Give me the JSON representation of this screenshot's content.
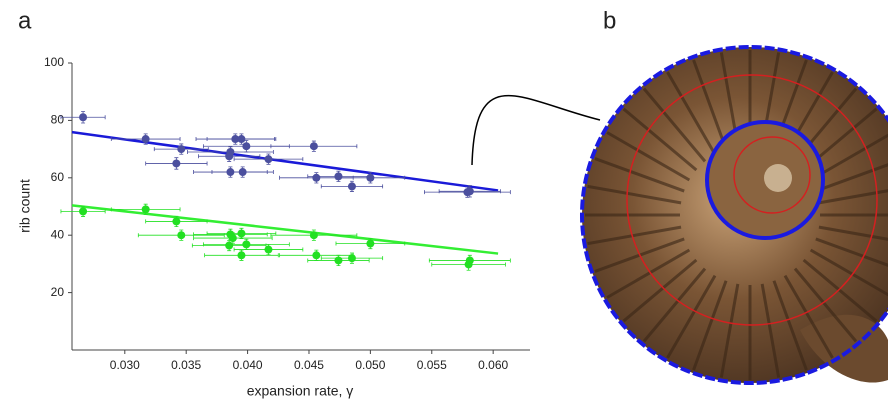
{
  "chart_data": {
    "type": "scatter",
    "panel_labels": [
      "a",
      "b"
    ],
    "xlabel": "expansion rate, γ",
    "ylabel": "rib count",
    "xlim": [
      0.0257,
      0.063
    ],
    "ylim": [
      0,
      100
    ],
    "xticks": [
      {
        "value": 0.03,
        "label": "0.030"
      },
      {
        "value": 0.035,
        "label": "0.035"
      },
      {
        "value": 0.04,
        "label": "0.040"
      },
      {
        "value": 0.045,
        "label": "0.045"
      },
      {
        "value": 0.05,
        "label": "0.050"
      },
      {
        "value": 0.055,
        "label": "0.055"
      },
      {
        "value": 0.06,
        "label": "0.060"
      }
    ],
    "yticks": [
      20,
      40,
      60,
      80,
      100
    ],
    "series": [
      {
        "color": "#4b4f9e",
        "x": [
          0.0266,
          0.0317,
          0.0346,
          0.0342,
          0.0386,
          0.0385,
          0.039,
          0.0395,
          0.0399,
          0.0386,
          0.0396,
          0.0417,
          0.0454,
          0.0456,
          0.0474,
          0.0485,
          0.05,
          0.0581,
          0.0579
        ],
        "values": [
          81.1,
          73.5,
          70,
          65,
          69,
          67.5,
          73.5,
          73.5,
          71,
          62,
          62,
          66.5,
          71,
          60,
          60.5,
          57,
          60,
          55.3,
          55
        ],
        "xerr": [
          0.0018,
          0.0028,
          0.0022,
          0.0025,
          0.0035,
          0.0025,
          0.0032,
          0.0028,
          0.0035,
          0.003,
          0.0025,
          0.0028,
          0.0035,
          0.003,
          0.0025,
          0.0025,
          0.0028,
          0.0025,
          0.0035
        ],
        "yerr": [
          2,
          1.8,
          1.8,
          2,
          1.8,
          1.8,
          1.8,
          1.8,
          2,
          1.8,
          1.8,
          1.8,
          1.8,
          1.8,
          1.8,
          1.8,
          1.8,
          2,
          1.8
        ]
      },
      {
        "color": "#22e022",
        "x": [
          0.0266,
          0.0317,
          0.0342,
          0.0346,
          0.0386,
          0.0385,
          0.0388,
          0.0395,
          0.0399,
          0.0395,
          0.0417,
          0.0454,
          0.0456,
          0.0474,
          0.0485,
          0.05,
          0.058,
          0.0581
        ],
        "values": [
          48.3,
          49,
          44.8,
          40,
          40.3,
          36.4,
          39,
          40.6,
          36.8,
          33,
          35,
          40,
          33,
          31.2,
          32,
          37.1,
          29.8,
          31.2
        ],
        "xerr": [
          0.0018,
          0.0028,
          0.0025,
          0.0035,
          0.003,
          0.003,
          0.0032,
          0.0028,
          0.0035,
          0.003,
          0.0028,
          0.0035,
          0.003,
          0.0025,
          0.0025,
          0.0028,
          0.003,
          0.0033
        ],
        "yerr": [
          1.8,
          1.8,
          1.8,
          1.8,
          1.8,
          1.8,
          1.8,
          1.8,
          1.8,
          1.8,
          1.8,
          1.8,
          1.8,
          1.8,
          1.8,
          1.8,
          2,
          1.8
        ]
      }
    ],
    "fits": [
      {
        "color": "#1a1ad8",
        "x": [
          0.0257,
          0.0604
        ],
        "values": [
          75.9,
          55.6
        ]
      },
      {
        "color": "#33ee33",
        "x": [
          0.0257,
          0.0604
        ],
        "values": [
          50.4,
          33.6
        ]
      }
    ]
  }
}
